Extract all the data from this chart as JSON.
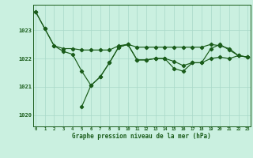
{
  "title": "Graphe pression niveau de la mer (hPa)",
  "background_color": "#caf0e0",
  "grid_color": "#a8d8c8",
  "line_color": "#1a5c1a",
  "marker_color": "#1a5c1a",
  "x_labels": [
    "0",
    "1",
    "2",
    "3",
    "4",
    "5",
    "6",
    "7",
    "8",
    "9",
    "10",
    "11",
    "12",
    "13",
    "14",
    "15",
    "16",
    "17",
    "18",
    "19",
    "20",
    "21",
    "22",
    "23"
  ],
  "ylim": [
    1019.6,
    1023.9
  ],
  "yticks": [
    1020,
    1021,
    1022,
    1023
  ],
  "series1": [
    1023.65,
    1023.05,
    1022.45,
    1022.35,
    1022.35,
    1022.3,
    1022.3,
    1022.3,
    1022.3,
    1022.45,
    1022.5,
    1022.4,
    1022.4,
    1022.4,
    1022.4,
    1022.4,
    1022.4,
    1022.4,
    1022.4,
    1022.5,
    1022.45,
    1022.35,
    1022.1,
    1022.05
  ],
  "series2": [
    1023.65,
    1023.05,
    1022.45,
    1022.25,
    1022.15,
    1021.55,
    1021.05,
    1021.35,
    1021.85,
    1022.4,
    1022.5,
    1021.95,
    1021.95,
    1022.0,
    1022.0,
    1021.9,
    1021.75,
    1021.85,
    1021.85,
    1022.35,
    1022.5,
    1022.3,
    1022.1,
    1022.05
  ],
  "series3": [
    null,
    null,
    null,
    null,
    null,
    1020.3,
    1021.05,
    1021.35,
    1021.85,
    1022.4,
    1022.5,
    1021.95,
    1021.95,
    1022.0,
    1022.0,
    1021.65,
    1021.55,
    1021.85,
    1021.85,
    1022.0,
    1022.05,
    1022.0,
    1022.1,
    1022.05
  ]
}
